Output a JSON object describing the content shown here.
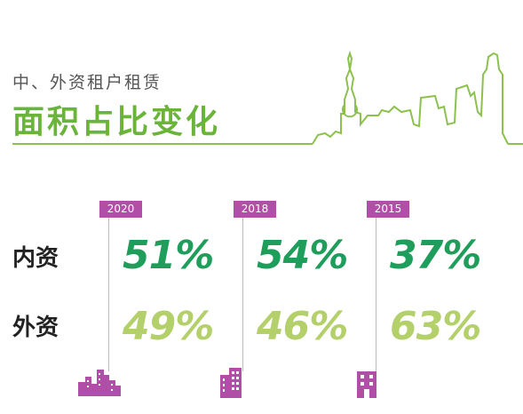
{
  "header": {
    "subtitle": "中、外资租户租赁",
    "title": "面积占比变化"
  },
  "rows": {
    "domestic_label": "内资",
    "foreign_label": "外资"
  },
  "columns": [
    {
      "year": "2020",
      "domestic": "51%",
      "foreign": "49%",
      "icon": "city-skyline-icon"
    },
    {
      "year": "2018",
      "domestic": "54%",
      "foreign": "46%",
      "icon": "building-icon"
    },
    {
      "year": "2015",
      "domestic": "37%",
      "foreign": "63%",
      "icon": "small-building-icon"
    }
  ],
  "colors": {
    "title_green": "#6ab43a",
    "domestic_green": "#1e9e5a",
    "foreign_green": "#b3d06a",
    "year_purple": "#b14fa8",
    "icon_purple": "#b14fa8"
  }
}
